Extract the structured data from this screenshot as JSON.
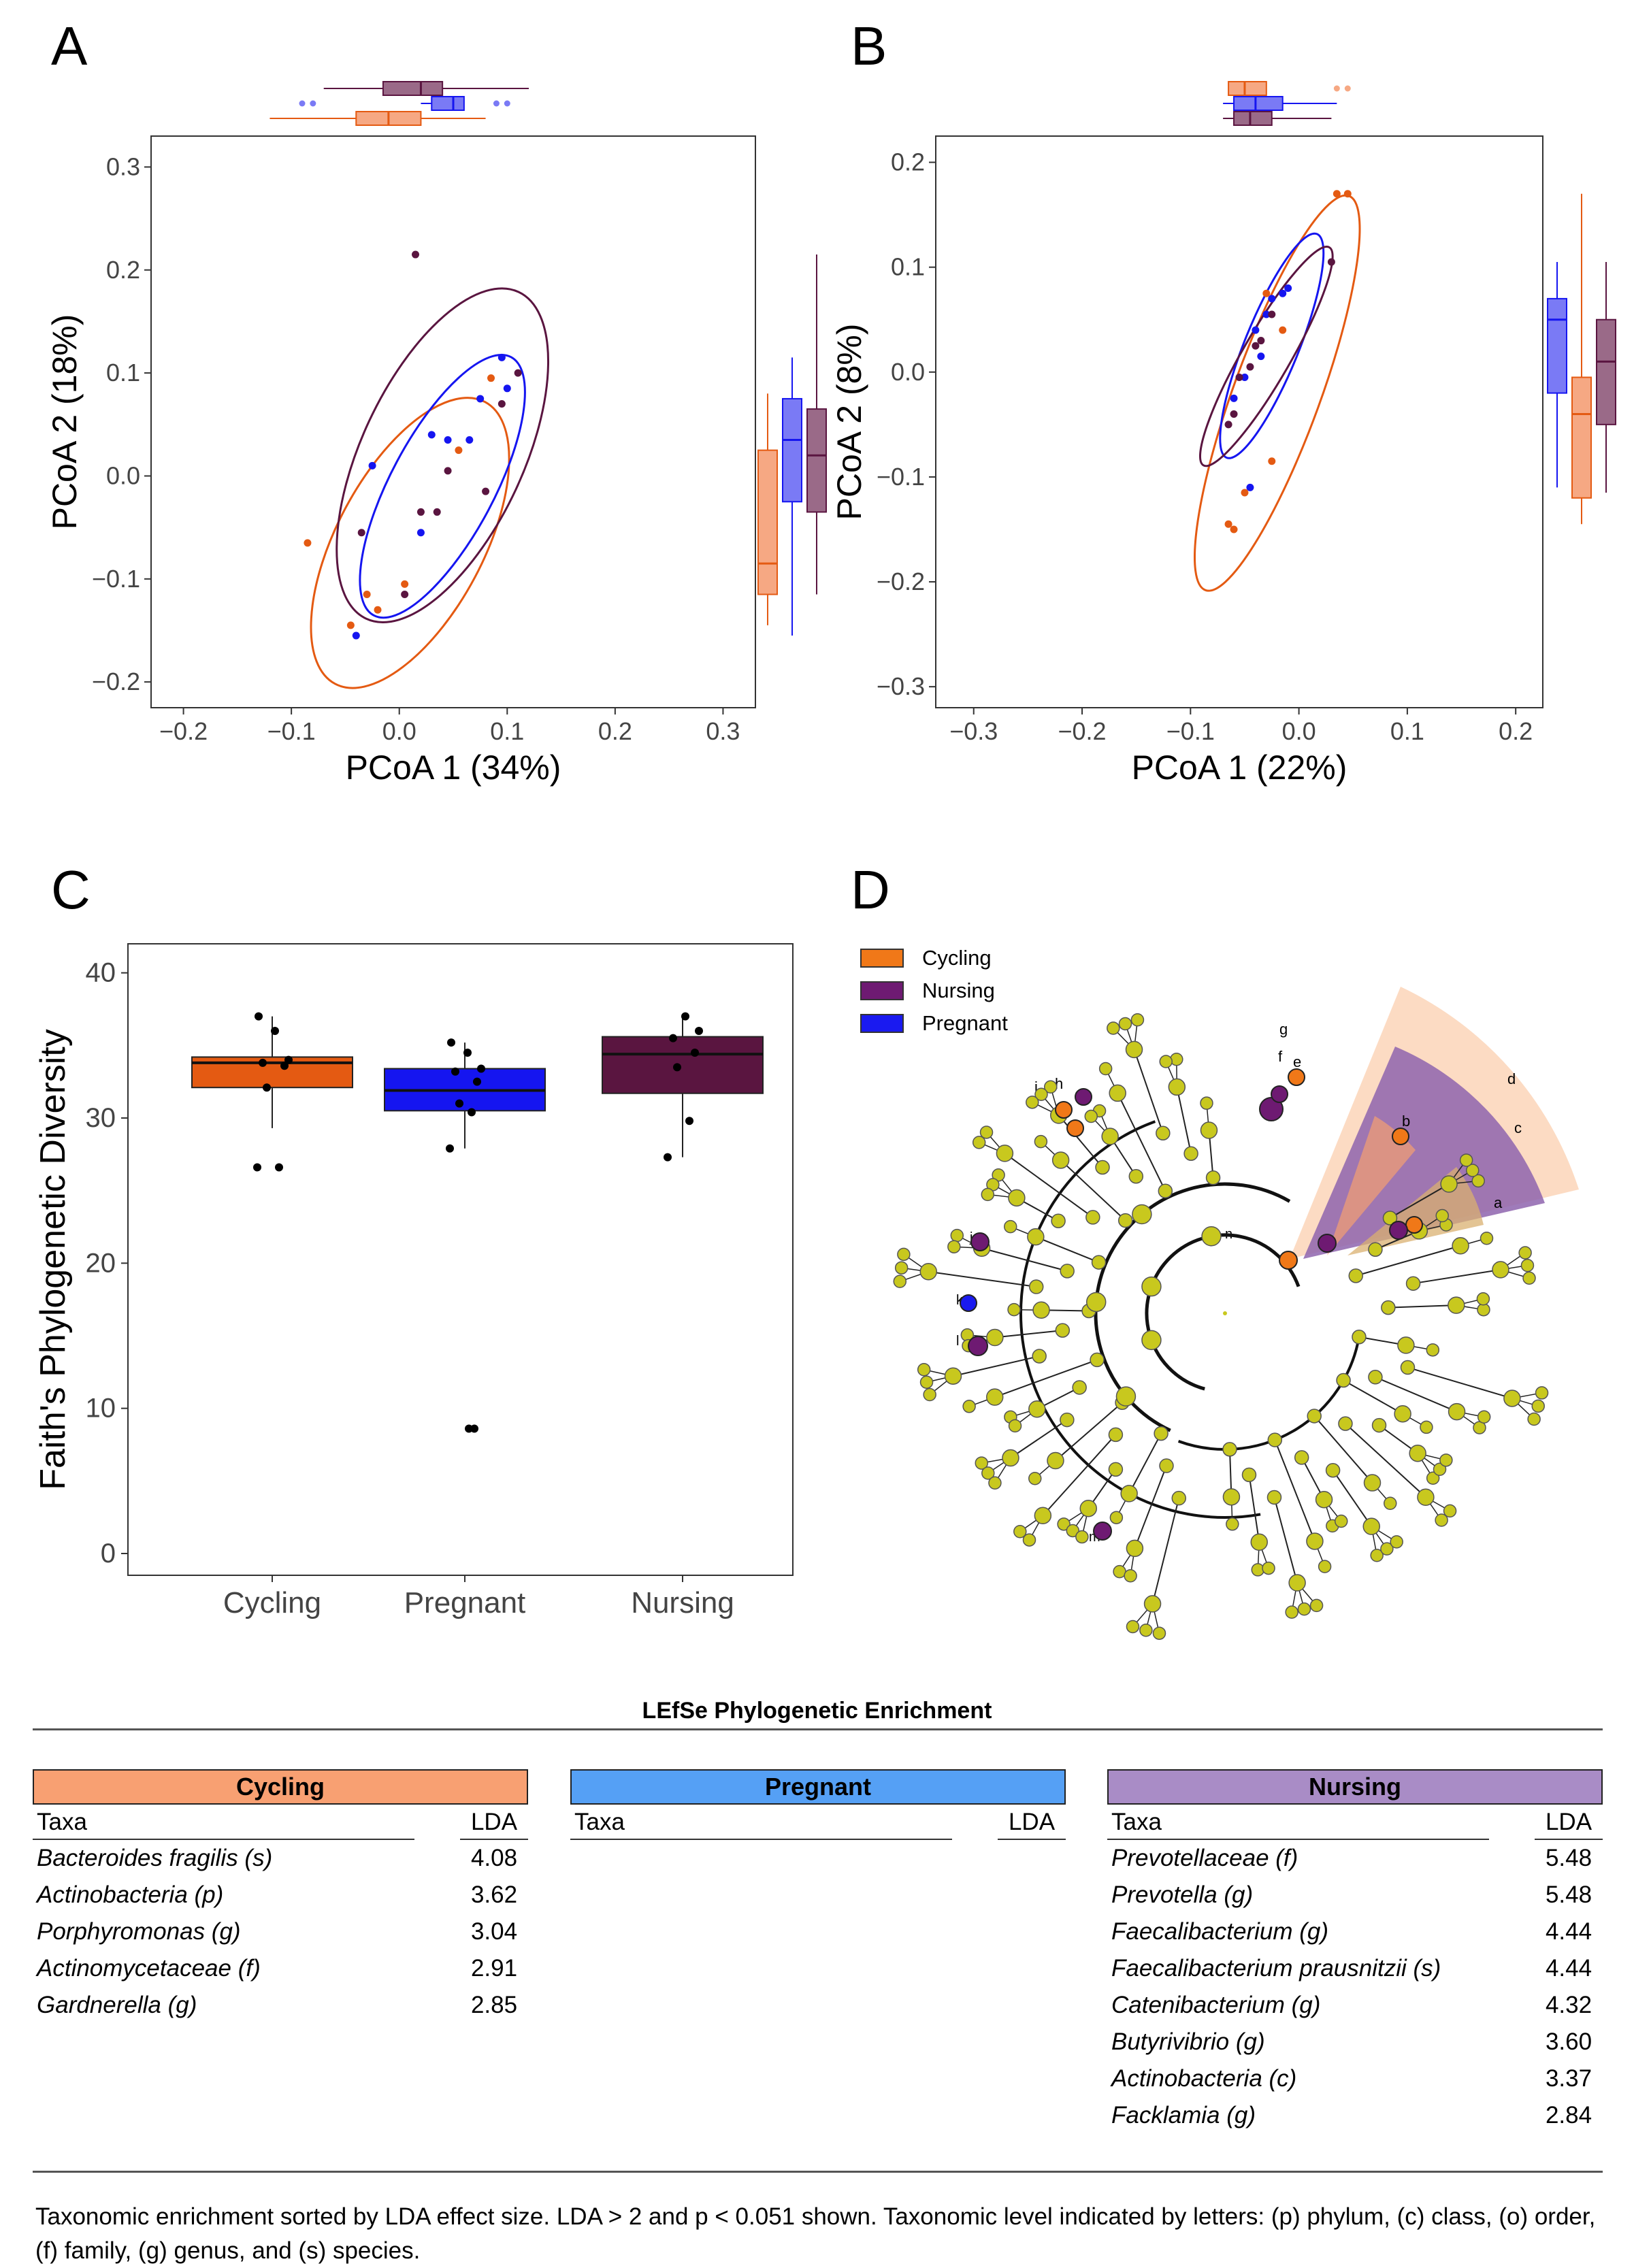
{
  "panel_letters": {
    "a": "A",
    "b": "B",
    "c": "C",
    "d": "D"
  },
  "colors": {
    "cycling": "#e45a12",
    "pregnant": "#1515f0",
    "nursing": "#5a1540",
    "cycling_light": "#f6a883",
    "pregnant_light": "#7a7af5",
    "nursing_light": "#9a6a88",
    "cladogram_node": "#c8c81e",
    "cycling_header": "#f8a072",
    "pregnant_header": "#55a0f5",
    "nursing_header": "#a98cc6"
  },
  "chart_data": [
    {
      "id": "A",
      "type": "scatter",
      "title": "",
      "xlabel": "PCoA 1 (34%)",
      "ylabel": "PCoA 2 (18%)",
      "xlim": [
        -0.23,
        0.33
      ],
      "ylim": [
        -0.225,
        0.33
      ],
      "xticks": [
        -0.2,
        -0.1,
        0.0,
        0.1,
        0.2,
        0.3
      ],
      "yticks": [
        -0.2,
        -0.1,
        0.0,
        0.1,
        0.2,
        0.3
      ],
      "xtick_labels": [
        "−0.2",
        "−0.1",
        "0.0",
        "0.1",
        "0.2",
        "0.3"
      ],
      "ytick_labels": [
        "−0.2",
        "−0.1",
        "0.0",
        "0.1",
        "0.2",
        "0.3"
      ],
      "series": [
        {
          "name": "Cycling",
          "color": "cycling",
          "points": [
            [
              -0.085,
              -0.065
            ],
            [
              -0.045,
              -0.145
            ],
            [
              -0.03,
              -0.115
            ],
            [
              -0.02,
              -0.13
            ],
            [
              0.005,
              -0.105
            ],
            [
              0.055,
              0.025
            ],
            [
              0.085,
              0.095
            ]
          ]
        },
        {
          "name": "Pregnant",
          "color": "pregnant",
          "points": [
            [
              -0.04,
              -0.155
            ],
            [
              -0.025,
              0.01
            ],
            [
              0.02,
              -0.055
            ],
            [
              0.03,
              0.04
            ],
            [
              0.045,
              0.035
            ],
            [
              0.065,
              0.035
            ],
            [
              0.075,
              0.075
            ],
            [
              0.095,
              0.115
            ],
            [
              0.1,
              0.085
            ]
          ]
        },
        {
          "name": "Nursing",
          "color": "nursing",
          "points": [
            [
              -0.035,
              -0.055
            ],
            [
              0.005,
              -0.115
            ],
            [
              0.015,
              0.215
            ],
            [
              0.02,
              -0.035
            ],
            [
              0.035,
              -0.035
            ],
            [
              0.045,
              0.005
            ],
            [
              0.08,
              -0.015
            ],
            [
              0.095,
              0.07
            ],
            [
              0.11,
              0.1
            ]
          ]
        }
      ],
      "ellipses": [
        {
          "group": "Cycling",
          "center": [
            0.01,
            -0.065
          ],
          "rx": 0.068,
          "ry": 0.155,
          "angle": 28
        },
        {
          "group": "Pregnant",
          "center": [
            0.04,
            -0.01
          ],
          "rx": 0.048,
          "ry": 0.142,
          "angle": 28
        },
        {
          "group": "Nursing",
          "center": [
            0.04,
            0.02
          ],
          "rx": 0.075,
          "ry": 0.175,
          "angle": 25
        }
      ],
      "marginal_x": [
        {
          "group": "Nursing",
          "whisker": [
            -0.07,
            0.12
          ],
          "q1": -0.015,
          "median": 0.02,
          "q3": 0.04,
          "outliers": []
        },
        {
          "group": "Pregnant",
          "whisker": [
            0.02,
            0.06
          ],
          "q1": 0.03,
          "median": 0.05,
          "q3": 0.06,
          "outliers": [
            -0.09,
            -0.08,
            0.09,
            0.1
          ]
        },
        {
          "group": "Cycling",
          "whisker": [
            -0.12,
            0.08
          ],
          "q1": -0.04,
          "median": -0.01,
          "q3": 0.02,
          "outliers": []
        }
      ],
      "marginal_y": [
        {
          "group": "Cycling",
          "whisker": [
            -0.145,
            0.08
          ],
          "q1": -0.115,
          "median": -0.085,
          "q3": 0.025,
          "outliers": []
        },
        {
          "group": "Pregnant",
          "whisker": [
            -0.155,
            0.115
          ],
          "q1": -0.025,
          "median": 0.035,
          "q3": 0.075,
          "outliers": []
        },
        {
          "group": "Nursing",
          "whisker": [
            -0.115,
            0.215
          ],
          "q1": -0.035,
          "median": 0.02,
          "q3": 0.065,
          "outliers": []
        }
      ]
    },
    {
      "id": "B",
      "type": "scatter",
      "title": "",
      "xlabel": "PCoA 1 (22%)",
      "ylabel": "PCoA 2 (8%)",
      "xlim": [
        -0.335,
        0.225
      ],
      "ylim": [
        -0.32,
        0.225
      ],
      "xticks": [
        -0.3,
        -0.2,
        -0.1,
        0.0,
        0.1,
        0.2
      ],
      "yticks": [
        -0.3,
        -0.2,
        -0.1,
        0.0,
        0.1,
        0.2
      ],
      "xtick_labels": [
        "−0.3",
        "−0.2",
        "−0.1",
        "0.0",
        "0.1",
        "0.2"
      ],
      "ytick_labels": [
        "−0.3",
        "−0.2",
        "−0.1",
        "0.0",
        "0.1",
        "0.2"
      ],
      "series": [
        {
          "name": "Cycling",
          "color": "cycling",
          "points": [
            [
              -0.065,
              -0.145
            ],
            [
              -0.06,
              -0.15
            ],
            [
              -0.05,
              -0.115
            ],
            [
              -0.03,
              0.075
            ],
            [
              -0.025,
              -0.085
            ],
            [
              -0.015,
              0.04
            ],
            [
              0.035,
              0.17
            ],
            [
              0.045,
              0.17
            ]
          ]
        },
        {
          "name": "Pregnant",
          "color": "pregnant",
          "points": [
            [
              -0.06,
              -0.025
            ],
            [
              -0.05,
              -0.005
            ],
            [
              -0.045,
              -0.11
            ],
            [
              -0.04,
              0.04
            ],
            [
              -0.035,
              0.015
            ],
            [
              -0.03,
              0.055
            ],
            [
              -0.025,
              0.07
            ],
            [
              -0.015,
              0.075
            ],
            [
              -0.01,
              0.08
            ]
          ]
        },
        {
          "name": "Nursing",
          "color": "nursing",
          "points": [
            [
              -0.065,
              -0.05
            ],
            [
              -0.06,
              -0.04
            ],
            [
              -0.055,
              -0.005
            ],
            [
              -0.045,
              0.005
            ],
            [
              -0.04,
              0.025
            ],
            [
              -0.035,
              0.03
            ],
            [
              -0.025,
              0.055
            ],
            [
              0.03,
              0.105
            ]
          ]
        }
      ],
      "ellipses": [
        {
          "group": "Cycling",
          "center": [
            -0.02,
            -0.02
          ],
          "rx": 0.04,
          "ry": 0.2,
          "angle": 20
        },
        {
          "group": "Pregnant",
          "center": [
            -0.025,
            0.025
          ],
          "rx": 0.025,
          "ry": 0.115,
          "angle": 22
        },
        {
          "group": "Nursing",
          "center": [
            -0.03,
            0.015
          ],
          "rx": 0.022,
          "ry": 0.12,
          "angle": 30
        }
      ],
      "marginal_x": [
        {
          "group": "Cycling",
          "whisker": [
            -0.065,
            -0.03
          ],
          "q1": -0.065,
          "median": -0.05,
          "q3": -0.03,
          "outliers": [
            0.035,
            0.045
          ]
        },
        {
          "group": "Pregnant",
          "whisker": [
            -0.07,
            0.035
          ],
          "q1": -0.06,
          "median": -0.04,
          "q3": -0.015,
          "outliers": []
        },
        {
          "group": "Nursing",
          "whisker": [
            -0.07,
            0.03
          ],
          "q1": -0.06,
          "median": -0.045,
          "q3": -0.025,
          "outliers": []
        }
      ],
      "marginal_y": [
        {
          "group": "Pregnant",
          "whisker": [
            -0.11,
            0.105
          ],
          "q1": -0.02,
          "median": 0.05,
          "q3": 0.07,
          "outliers": []
        },
        {
          "group": "Cycling",
          "whisker": [
            -0.145,
            0.17
          ],
          "q1": -0.12,
          "median": -0.04,
          "q3": -0.005,
          "outliers": []
        },
        {
          "group": "Nursing",
          "whisker": [
            -0.115,
            0.105
          ],
          "q1": -0.05,
          "median": 0.01,
          "q3": 0.05,
          "outliers": []
        }
      ]
    },
    {
      "id": "C",
      "type": "box",
      "title": "",
      "xlabel": "",
      "ylabel": "Faith's Phylogenetic Diversity",
      "ylim": [
        -1.5,
        42
      ],
      "yticks": [
        0,
        10,
        20,
        30,
        40
      ],
      "categories": [
        "Cycling",
        "Pregnant",
        "Nursing"
      ],
      "boxes": [
        {
          "group": "Cycling",
          "color": "cycling",
          "whisker": [
            29.3,
            37.0
          ],
          "q1": 32.1,
          "median": 33.8,
          "q3": 34.2,
          "points": [
            26.6,
            26.6,
            32.1,
            33.6,
            33.8,
            34.0,
            36.0,
            37.0
          ],
          "outliers": [
            26.6,
            26.6
          ]
        },
        {
          "group": "Pregnant",
          "color": "pregnant",
          "whisker": [
            27.9,
            35.2
          ],
          "q1": 30.5,
          "median": 31.9,
          "q3": 33.4,
          "points": [
            27.9,
            30.4,
            31.0,
            32.5,
            33.2,
            33.4,
            34.5,
            35.2,
            8.6,
            8.6
          ],
          "outliers": [
            8.6,
            8.6
          ]
        },
        {
          "group": "Nursing",
          "color": "nursing",
          "whisker": [
            27.3,
            37.0
          ],
          "q1": 31.7,
          "median": 34.4,
          "q3": 35.6,
          "points": [
            27.3,
            29.8,
            33.5,
            34.5,
            35.5,
            36.0,
            37.0
          ],
          "outliers": []
        }
      ]
    }
  ],
  "cladogram": {
    "legend": [
      {
        "label": "Cycling",
        "color": "cycling"
      },
      {
        "label": "Nursing",
        "color": "nursing"
      },
      {
        "label": "Pregnant",
        "color": "pregnant"
      }
    ],
    "clade_letters": [
      "a",
      "b",
      "c",
      "d",
      "e",
      "f",
      "g",
      "h",
      "i",
      "j",
      "k",
      "l",
      "m",
      "n"
    ]
  },
  "lefse": {
    "title": "LEfSe Phylogenetic Enrichment",
    "taxa_header": "Taxa",
    "lda_header": "LDA",
    "groups": [
      {
        "name": "Cycling",
        "rows": [
          {
            "taxon": "Bacteroides fragilis (s)",
            "lda": "4.08"
          },
          {
            "taxon": "Actinobacteria (p)",
            "lda": "3.62"
          },
          {
            "taxon": "Porphyromonas (g)",
            "lda": "3.04"
          },
          {
            "taxon": "Actinomycetaceae (f)",
            "lda": "2.91"
          },
          {
            "taxon": "Gardnerella (g)",
            "lda": "2.85"
          }
        ]
      },
      {
        "name": "Pregnant",
        "rows": []
      },
      {
        "name": "Nursing",
        "rows": [
          {
            "taxon": "Prevotellaceae (f)",
            "lda": "5.48"
          },
          {
            "taxon": "Prevotella (g)",
            "lda": "5.48"
          },
          {
            "taxon": "Faecalibacterium (g)",
            "lda": "4.44"
          },
          {
            "taxon": "Faecalibacterium prausnitzii (s)",
            "lda": "4.44"
          },
          {
            "taxon": "Catenibacterium (g)",
            "lda": "4.32"
          },
          {
            "taxon": "Butyrivibrio (g)",
            "lda": "3.60"
          },
          {
            "taxon": "Actinobacteria (c)",
            "lda": "3.37"
          },
          {
            "taxon": "Facklamia (g)",
            "lda": "2.84"
          }
        ]
      }
    ],
    "caption": "Taxonomic enrichment sorted by LDA effect size. LDA > 2 and p < 0.051 shown. Taxonomic level indicated by letters: (p) phylum, (c) class, (o) order, (f) family, (g) genus, and (s) species."
  }
}
